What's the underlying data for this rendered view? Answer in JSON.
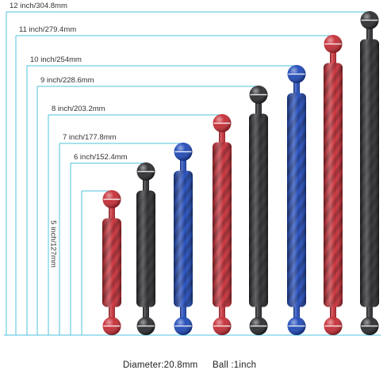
{
  "sizes": [
    {
      "label": "5 inch/127mm",
      "color": "#c62a33"
    },
    {
      "label": "6 inch/152.4mm",
      "color": "#2a2a2e"
    },
    {
      "label": "7 inch/177.8mm",
      "color": "#1d47b8"
    },
    {
      "label": "8 inch/203.2mm",
      "color": "#c62a33"
    },
    {
      "label": "9 inch/228.6mm",
      "color": "#2a2a2e"
    },
    {
      "label": "10 inch/254mm",
      "color": "#1d47b8"
    },
    {
      "label": "11 inch/279.4mm",
      "color": "#c62a33"
    },
    {
      "label": "12 inch/304.8mm",
      "color": "#2a2a2e"
    }
  ],
  "footer": {
    "diameter": "Diameter:20.8mm",
    "ball": "Ball :1inch"
  },
  "colors": {
    "guide_line": "#4fc3dc",
    "red": "#c62a33",
    "blue": "#1d47b8",
    "black": "#2a2a2e"
  }
}
